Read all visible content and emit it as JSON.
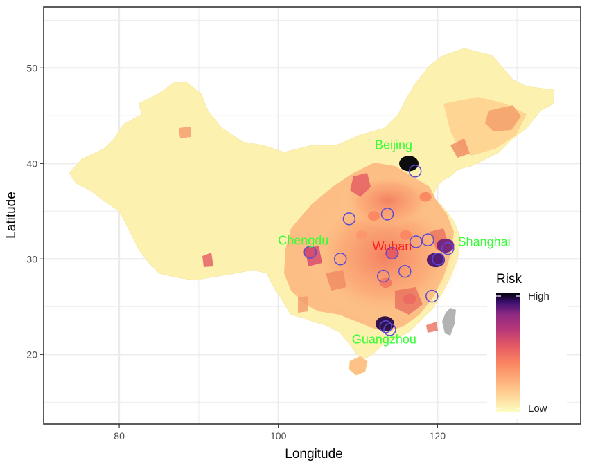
{
  "chart_data": {
    "type": "map",
    "xlabel": "Longitude",
    "ylabel": "Latitude",
    "xlim": [
      70.5,
      138
    ],
    "ylim": [
      12.7,
      56.4
    ],
    "x_ticks": [
      80,
      100,
      120
    ],
    "y_ticks": [
      20,
      30,
      40,
      50
    ],
    "grid": true,
    "legend": {
      "title": "Risk",
      "high_label": "High",
      "low_label": "Low",
      "placement": "bottom-right"
    },
    "colors": {
      "scale_low": "#fcfdbf",
      "scale_high": "#000004",
      "no_data": "#b3b3b3",
      "circle": "#5a4ad6"
    },
    "cities": [
      {
        "name": "Beijing",
        "lon": 116.4,
        "lat": 39.9,
        "label_color": "#33ff33"
      },
      {
        "name": "Shanghai",
        "lon": 121.5,
        "lat": 31.2,
        "label_color": "#33ff33"
      },
      {
        "name": "Chengdu",
        "lon": 104.1,
        "lat": 30.7,
        "label_color": "#33ff33"
      },
      {
        "name": "Wuhan",
        "lon": 114.3,
        "lat": 30.6,
        "label_color": "#ff2020"
      },
      {
        "name": "Guangzhou",
        "lon": 113.3,
        "lat": 23.1,
        "label_color": "#33ff33"
      }
    ],
    "circles": [
      {
        "lon": 117.2,
        "lat": 39.2
      },
      {
        "lon": 104.0,
        "lat": 30.7
      },
      {
        "lon": 108.9,
        "lat": 34.2
      },
      {
        "lon": 113.7,
        "lat": 34.7
      },
      {
        "lon": 107.8,
        "lat": 30.0
      },
      {
        "lon": 114.3,
        "lat": 30.6
      },
      {
        "lon": 117.3,
        "lat": 31.8
      },
      {
        "lon": 118.8,
        "lat": 32.0
      },
      {
        "lon": 121.3,
        "lat": 31.1
      },
      {
        "lon": 113.2,
        "lat": 28.2
      },
      {
        "lon": 115.9,
        "lat": 28.7
      },
      {
        "lon": 119.3,
        "lat": 26.1
      },
      {
        "lon": 113.5,
        "lat": 22.9
      },
      {
        "lon": 114.0,
        "lat": 22.6
      },
      {
        "lon": 120.1,
        "lat": 30.0
      }
    ],
    "hotspots": [
      {
        "lon": 116.4,
        "lat": 40.0,
        "risk": 1.0
      },
      {
        "lon": 113.4,
        "lat": 23.2,
        "risk": 0.95
      },
      {
        "lon": 119.8,
        "lat": 29.9,
        "risk": 0.9
      },
      {
        "lon": 121.0,
        "lat": 31.4,
        "risk": 0.85
      },
      {
        "lon": 104.0,
        "lat": 30.7,
        "risk": 0.6
      },
      {
        "lon": 114.3,
        "lat": 30.6,
        "risk": 0.55
      },
      {
        "lon": 113.5,
        "lat": 27.5,
        "risk": 0.45
      },
      {
        "lon": 116.5,
        "lat": 25.8,
        "risk": 0.5
      },
      {
        "lon": 112.0,
        "lat": 34.5,
        "risk": 0.4
      },
      {
        "lon": 118.5,
        "lat": 36.5,
        "risk": 0.4
      },
      {
        "lon": 110.5,
        "lat": 32.5,
        "risk": 0.35
      },
      {
        "lon": 116.0,
        "lat": 32.5,
        "risk": 0.4
      }
    ]
  }
}
